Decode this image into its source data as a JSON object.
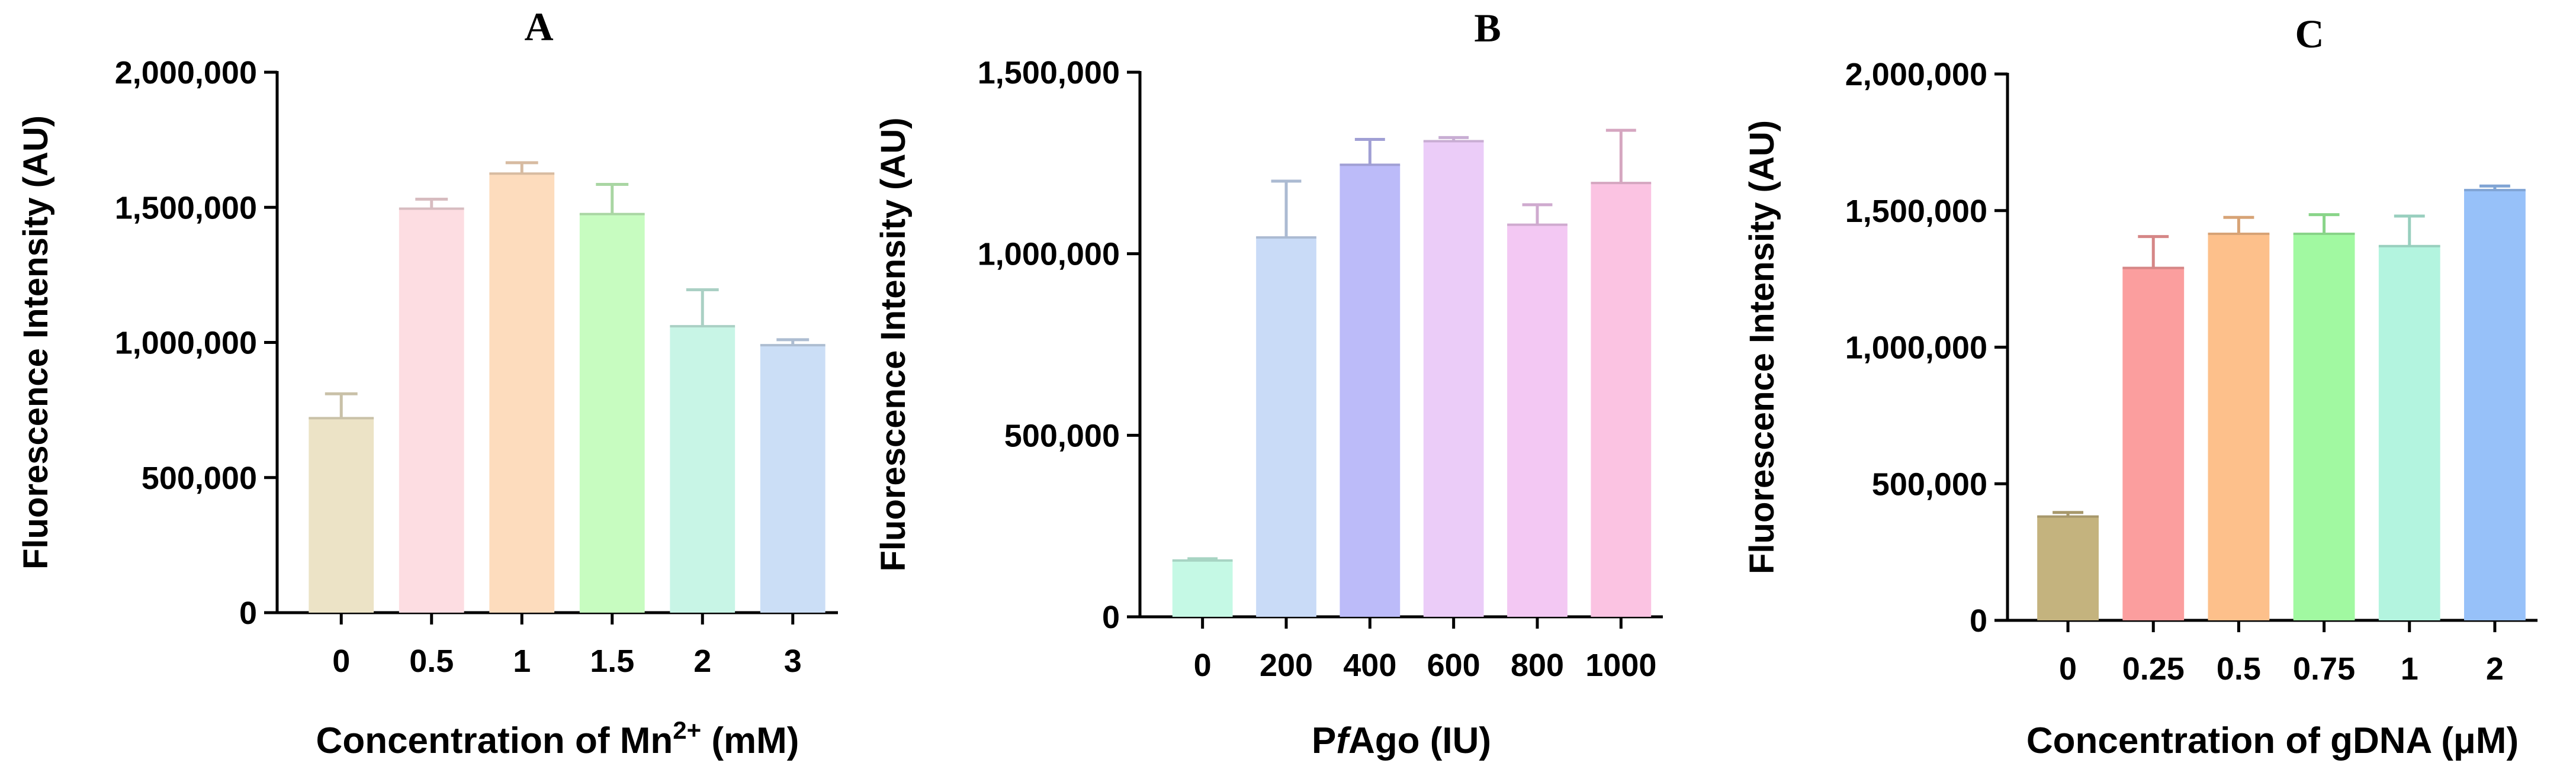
{
  "chart_data": [
    {
      "type": "bar",
      "panel": "A",
      "title": "A",
      "xlabel": "Concentration of Mn",
      "xlabel_sup": "2+",
      "xlabel_suffix": " (mM)",
      "ylabel": "Fluorescence Intensity (AU)",
      "ylim": [
        0,
        2000000
      ],
      "yticks": [
        0,
        500000,
        1000000,
        1500000,
        2000000
      ],
      "ytick_labels": [
        "0",
        "500,000",
        "1,000,000",
        "1,500,000",
        "2,000,000"
      ],
      "categories": [
        "0",
        "0.5",
        "1",
        "1.5",
        "2",
        "3"
      ],
      "values": [
        720000,
        1495000,
        1625000,
        1475000,
        1060000,
        990000
      ],
      "errors": [
        90000,
        35000,
        40000,
        110000,
        135000,
        20000
      ],
      "colors": [
        "#ece3c6",
        "#fddde2",
        "#fddcbd",
        "#c7fcc0",
        "#c8f5e6",
        "#cbdef6"
      ]
    },
    {
      "type": "bar",
      "panel": "B",
      "title": "B",
      "xlabel_prefix": "P",
      "xlabel_italic": "f",
      "xlabel_suffix": "Ago (IU)",
      "ylabel": "Fluorescence Intensity (AU)",
      "ylim": [
        0,
        1500000
      ],
      "yticks": [
        0,
        500000,
        1000000,
        1500000
      ],
      "ytick_labels": [
        "0",
        "500,000",
        "1,000,000",
        "1,500,000"
      ],
      "categories": [
        "0",
        "200",
        "400",
        "600",
        "800",
        "1000"
      ],
      "values": [
        155000,
        1045000,
        1245000,
        1310000,
        1080000,
        1195000
      ],
      "errors": [
        5000,
        155000,
        70000,
        10000,
        55000,
        145000
      ],
      "colors": [
        "#c5f9e5",
        "#c9dbf7",
        "#bcbbf9",
        "#ebccf8",
        "#f3c8f3",
        "#fbc3e2"
      ]
    },
    {
      "type": "bar",
      "panel": "C",
      "title": "C",
      "xlabel": "Concentration of gDNA (μM)",
      "ylabel": "Fluorescence Intensity (AU)",
      "ylim": [
        0,
        2000000
      ],
      "yticks": [
        0,
        500000,
        1000000,
        1500000,
        2000000
      ],
      "ytick_labels": [
        "0",
        "500,000",
        "1,000,000",
        "1,500,000",
        "2,000,000"
      ],
      "categories": [
        "0",
        "0.25",
        "0.5",
        "0.75",
        "1",
        "2"
      ],
      "values": [
        380000,
        1290000,
        1415000,
        1415000,
        1370000,
        1575000
      ],
      "errors": [
        15000,
        115000,
        60000,
        70000,
        110000,
        15000
      ],
      "colors": [
        "#c4b37e",
        "#fb9e9e",
        "#fdc08b",
        "#a1f9a1",
        "#b3f4df",
        "#97c1f9"
      ]
    }
  ]
}
